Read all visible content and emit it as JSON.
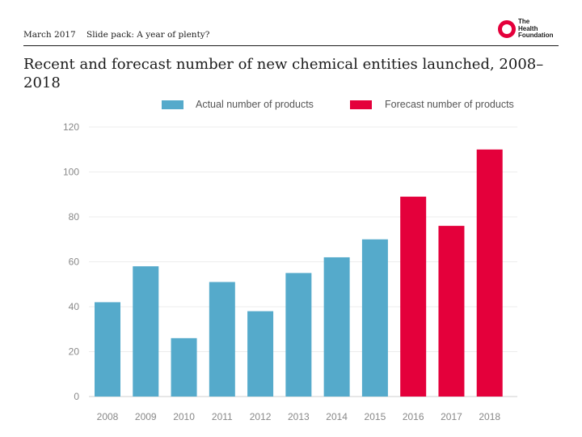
{
  "header": {
    "date": "March 2017",
    "slide_pack": "Slide pack: A year of plenty?",
    "logo_lines": [
      "The",
      "Health",
      "Foundation"
    ]
  },
  "colors": {
    "actual": "#55aacb",
    "forecast": "#e4003b",
    "brand": "#e4003b"
  },
  "chart_data": {
    "type": "bar",
    "title": "Recent and forecast number of new chemical entities launched, 2008–2018",
    "xlabel": "",
    "ylabel": "",
    "ylim": [
      0,
      120
    ],
    "yticks": [
      0,
      20,
      40,
      60,
      80,
      100,
      120
    ],
    "categories": [
      "2008",
      "2009",
      "2010",
      "2011",
      "2012",
      "2013",
      "2014",
      "2015",
      "2016",
      "2017",
      "2018"
    ],
    "series": [
      {
        "name": "Actual number of products",
        "values": [
          42,
          58,
          26,
          51,
          38,
          55,
          62,
          70,
          null,
          null,
          null
        ]
      },
      {
        "name": "Forecast number of products",
        "values": [
          null,
          null,
          null,
          null,
          null,
          null,
          null,
          null,
          89,
          76,
          110
        ]
      }
    ],
    "legend": "top"
  }
}
